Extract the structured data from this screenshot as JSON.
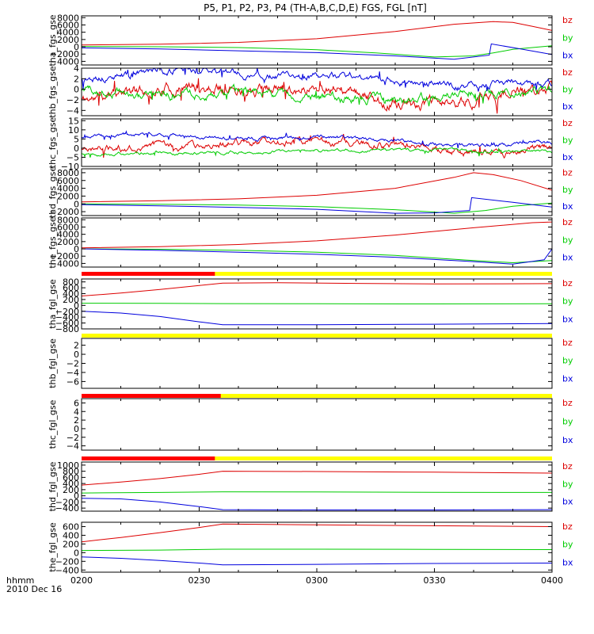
{
  "chart_data": {
    "type": "line",
    "title": "P5, P1, P2, P3, P4 (TH-A,B,C,D,E) FGS, FGL [nT]",
    "time_label_line1": "hhmm",
    "time_label_line2": "2010 Dec 16",
    "x_ticks": [
      "0200",
      "0230",
      "0300",
      "0330",
      "0400"
    ],
    "x_range_minutes": [
      0,
      120
    ],
    "component_colors": {
      "bz": "#dd0000",
      "by": "#00cc00",
      "bx": "#0000dd"
    },
    "bar_colors": {
      "red": "#ff0000",
      "yellow": "#ffff00"
    },
    "panels": [
      {
        "ylabel": "tha_fgs_gse",
        "ylim": [
          -5000,
          8500
        ],
        "yticks": [
          "8000",
          "6000",
          "4000",
          "2000",
          "0",
          "−2000",
          "−4000"
        ],
        "ytick_values": [
          8000,
          6000,
          4000,
          2000,
          0,
          -2000,
          -4000
        ],
        "legend": [
          "bz",
          "by",
          "bx"
        ],
        "series": [
          {
            "name": "bz",
            "t": [
              0,
              20,
              40,
              60,
              80,
              95,
              105,
              110,
              115,
              120
            ],
            "values": [
              500,
              700,
              1200,
              2200,
              4200,
              6200,
              6900,
              6700,
              5600,
              4500
            ]
          },
          {
            "name": "by",
            "t": [
              0,
              20,
              40,
              60,
              75,
              90,
              100,
              105,
              110,
              120
            ],
            "values": [
              100,
              0,
              -200,
              -800,
              -1700,
              -2800,
              -2500,
              -1700,
              -700,
              300
            ]
          },
          {
            "name": "bx",
            "t": [
              0,
              20,
              40,
              60,
              80,
              95,
              104,
              104.5,
              112,
              120
            ],
            "values": [
              -300,
              -600,
              -1100,
              -1600,
              -2500,
              -3400,
              -2300,
              800,
              -600,
              -2100
            ]
          }
        ]
      },
      {
        "ylabel": "thb_fgs_gse",
        "ylim": [
          -5,
          4
        ],
        "yticks": [
          "4",
          "2",
          "0",
          "−2",
          "−4"
        ],
        "ytick_values": [
          4,
          2,
          0,
          -2,
          -4
        ],
        "legend": [
          "bz",
          "by",
          "bx"
        ],
        "series": [
          {
            "name": "bz",
            "noise": 1.3,
            "seed": 11,
            "t": [
              0,
              10,
              20,
              35,
              50,
              60,
              70,
              80,
              90,
              100,
              110,
              120
            ],
            "values": [
              -2,
              -1,
              0,
              0.5,
              0,
              0.5,
              -1,
              -2.5,
              -3,
              -2,
              -1,
              0
            ]
          },
          {
            "name": "by",
            "noise": 1.0,
            "seed": 12,
            "t": [
              0,
              20,
              40,
              60,
              80,
              100,
              120
            ],
            "values": [
              0,
              -1,
              -0.5,
              -1.5,
              -2,
              -1,
              0
            ]
          },
          {
            "name": "bx",
            "noise": 0.8,
            "seed": 13,
            "t": [
              0,
              10,
              20,
              30,
              50,
              70,
              90,
              100,
              110,
              120
            ],
            "values": [
              2,
              2.5,
              3.5,
              3.5,
              2.5,
              2.5,
              1,
              0.5,
              1.5,
              1
            ]
          }
        ]
      },
      {
        "ylabel": "thc_fgs_gse",
        "ylim": [
          -10,
          16
        ],
        "yticks": [
          "15",
          "10",
          "5",
          "0",
          "−5",
          "−10"
        ],
        "ytick_values": [
          15,
          10,
          5,
          0,
          -5,
          -10
        ],
        "legend": [
          "bz",
          "by",
          "bx"
        ],
        "series": [
          {
            "name": "bz",
            "noise": 2.5,
            "seed": 21,
            "t": [
              0,
              20,
              40,
              60,
              80,
              95,
              110,
              120
            ],
            "values": [
              0,
              1,
              3,
              4,
              1,
              -3,
              -2,
              1
            ]
          },
          {
            "name": "by",
            "noise": 1.0,
            "seed": 22,
            "t": [
              0,
              30,
              60,
              90,
              120
            ],
            "values": [
              -3,
              -2.5,
              -1.5,
              -1,
              -2
            ]
          },
          {
            "name": "bx",
            "noise": 1.2,
            "seed": 23,
            "t": [
              0,
              20,
              40,
              60,
              80,
              100,
              120
            ],
            "values": [
              6,
              8,
              5,
              6,
              4,
              1,
              3
            ]
          }
        ]
      },
      {
        "ylabel": "thd_fgs_gse",
        "ylim": [
          -3000,
          9000
        ],
        "yticks": [
          "8000",
          "6000",
          "4000",
          "2000",
          "0",
          "−2000"
        ],
        "ytick_values": [
          8000,
          6000,
          4000,
          2000,
          0,
          -2000
        ],
        "legend": [
          "bz",
          "by",
          "bx"
        ],
        "series": [
          {
            "name": "bz",
            "t": [
              0,
              20,
              40,
              60,
              80,
              95,
              100,
              105,
              112,
              120
            ],
            "values": [
              500,
              800,
              1300,
              2200,
              4000,
              6800,
              8000,
              7500,
              6000,
              3500
            ]
          },
          {
            "name": "by",
            "t": [
              0,
              20,
              40,
              60,
              80,
              95,
              103,
              110,
              120
            ],
            "values": [
              0,
              -100,
              -300,
              -700,
              -1500,
              -2400,
              -1700,
              -600,
              200
            ]
          },
          {
            "name": "bx",
            "t": [
              0,
              20,
              40,
              60,
              80,
              90,
              99,
              99.5,
              110,
              120
            ],
            "values": [
              -200,
              -500,
              -900,
              -1400,
              -2400,
              -2300,
              -1700,
              1600,
              400,
              -800
            ]
          }
        ]
      },
      {
        "ylabel": "the_fgs_gse",
        "ylim": [
          -5000,
          8500
        ],
        "yticks": [
          "8000",
          "6000",
          "4000",
          "2000",
          "0",
          "−2000",
          "−4000"
        ],
        "ytick_values": [
          8000,
          6000,
          4000,
          2000,
          0,
          -2000,
          -4000
        ],
        "legend": [
          "bz",
          "by",
          "bx"
        ],
        "series": [
          {
            "name": "bz",
            "t": [
              0,
              20,
              40,
              60,
              80,
              100,
              115,
              120
            ],
            "values": [
              300,
              600,
              1200,
              2200,
              3800,
              5800,
              7200,
              7400
            ]
          },
          {
            "name": "by",
            "t": [
              0,
              20,
              40,
              60,
              80,
              100,
              110,
              120
            ],
            "values": [
              0,
              -100,
              -400,
              -900,
              -1800,
              -3200,
              -3800,
              -3200
            ]
          },
          {
            "name": "bx",
            "t": [
              0,
              20,
              40,
              60,
              80,
              100,
              110,
              118,
              120
            ],
            "values": [
              0,
              -400,
              -900,
              -1500,
              -2300,
              -3500,
              -4200,
              -3000,
              0
            ]
          }
        ]
      },
      {
        "ylabel": "tha_fgl_gse",
        "ylim": [
          -800,
          900
        ],
        "yticks": [
          "800",
          "600",
          "400",
          "200",
          "0",
          "−200",
          "−400",
          "−600",
          "−800"
        ],
        "ytick_values": [
          800,
          600,
          400,
          200,
          0,
          -200,
          -400,
          -600,
          -800
        ],
        "legend": [
          "bz",
          "by",
          "bx"
        ],
        "bar": {
          "red_until": 34
        },
        "series": [
          {
            "name": "bz",
            "t": [
              0,
              10,
              20,
              30,
              36,
              50,
              70,
              90,
              120
            ],
            "values": [
              320,
              420,
              540,
              680,
              760,
              770,
              750,
              730,
              740
            ]
          },
          {
            "name": "by",
            "t": [
              0,
              20,
              36,
              60,
              90,
              120
            ],
            "values": [
              75,
              70,
              60,
              55,
              50,
              55
            ]
          },
          {
            "name": "bx",
            "t": [
              0,
              10,
              20,
              30,
              36,
              60,
              90,
              120
            ],
            "values": [
              -200,
              -260,
              -380,
              -560,
              -660,
              -660,
              -640,
              -620
            ]
          }
        ]
      },
      {
        "ylabel": "thb_fgl_gse",
        "ylim": [
          -7.5,
          3.5
        ],
        "yticks": [
          "2",
          "0",
          "−2",
          "−4",
          "−6"
        ],
        "ytick_values": [
          2,
          0,
          -2,
          -4,
          -6
        ],
        "legend": [
          "bz",
          "by",
          "bx"
        ],
        "bar": {
          "red_until": 0
        },
        "series": []
      },
      {
        "ylabel": "thc_fgl_gse",
        "ylim": [
          -5,
          7
        ],
        "yticks": [
          "6",
          "4",
          "2",
          "0",
          "−2",
          "−4"
        ],
        "ytick_values": [
          6,
          4,
          2,
          0,
          -2,
          -4
        ],
        "legend": [
          "bz",
          "by",
          "bx"
        ],
        "bar": {
          "red_until": 35.5
        },
        "series": []
      },
      {
        "ylabel": "thd_fgl_gse",
        "ylim": [
          -500,
          1100
        ],
        "yticks": [
          "1000",
          "800",
          "600",
          "400",
          "200",
          "0",
          "−200",
          "−400"
        ],
        "ytick_values": [
          1000,
          800,
          600,
          400,
          200,
          0,
          -200,
          -400
        ],
        "legend": [
          "bz",
          "by",
          "bx"
        ],
        "bar": {
          "red_until": 34
        },
        "series": [
          {
            "name": "bz",
            "t": [
              0,
              10,
              20,
              30,
              36,
              60,
              90,
              120
            ],
            "values": [
              350,
              450,
              560,
              700,
              800,
              790,
              770,
              740
            ]
          },
          {
            "name": "by",
            "t": [
              0,
              20,
              36,
              60,
              90,
              120
            ],
            "values": [
              90,
              110,
              130,
              125,
              115,
              110
            ]
          },
          {
            "name": "bx",
            "t": [
              0,
              10,
              20,
              30,
              36,
              60,
              90,
              120
            ],
            "values": [
              -80,
              -100,
              -200,
              -350,
              -450,
              -460,
              -460,
              -450
            ]
          }
        ]
      },
      {
        "ylabel": "the_fgl_gse",
        "ylim": [
          -450,
          700
        ],
        "yticks": [
          "600",
          "400",
          "200",
          "0",
          "−200",
          "−400"
        ],
        "ytick_values": [
          600,
          400,
          200,
          0,
          -200,
          -400
        ],
        "legend": [
          "bz",
          "by",
          "bx"
        ],
        "series": [
          {
            "name": "bz",
            "t": [
              0,
              10,
              20,
              30,
              36,
              60,
              90,
              120
            ],
            "values": [
              250,
              350,
              460,
              580,
              660,
              640,
              620,
              600
            ]
          },
          {
            "name": "by",
            "t": [
              0,
              20,
              36,
              60,
              90,
              120
            ],
            "values": [
              50,
              60,
              80,
              80,
              75,
              70
            ]
          },
          {
            "name": "bx",
            "t": [
              0,
              10,
              20,
              30,
              36,
              60,
              90,
              120
            ],
            "values": [
              -100,
              -130,
              -180,
              -240,
              -280,
              -270,
              -250,
              -240
            ]
          }
        ]
      }
    ]
  }
}
